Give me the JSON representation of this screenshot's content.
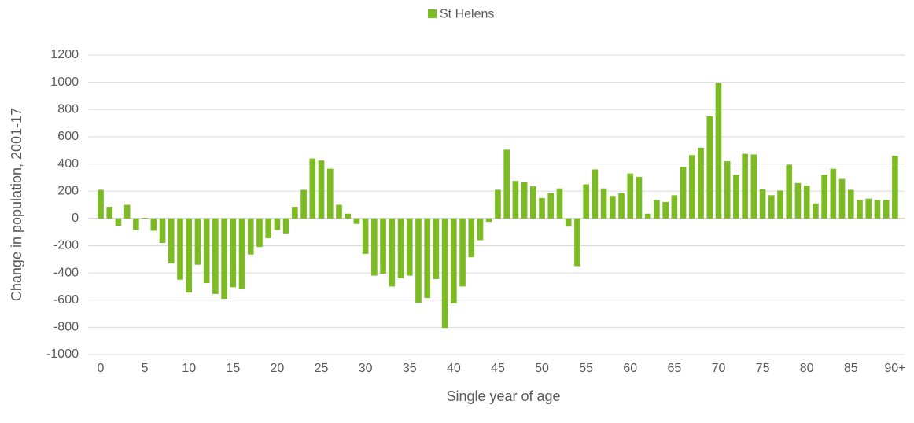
{
  "chart_data": {
    "type": "bar",
    "x_label": "Single year of age",
    "y_label": "Change in population, 2001-17",
    "categories": [
      "0",
      null,
      null,
      null,
      null,
      "5",
      null,
      null,
      null,
      null,
      "10",
      null,
      null,
      null,
      null,
      "15",
      null,
      null,
      null,
      null,
      "20",
      null,
      null,
      null,
      null,
      "25",
      null,
      null,
      null,
      null,
      "30",
      null,
      null,
      null,
      null,
      "35",
      null,
      null,
      null,
      null,
      "40",
      null,
      null,
      null,
      null,
      "45",
      null,
      null,
      null,
      null,
      "50",
      null,
      null,
      null,
      null,
      "55",
      null,
      null,
      null,
      null,
      "60",
      null,
      null,
      null,
      null,
      "65",
      null,
      null,
      null,
      null,
      "70",
      null,
      null,
      null,
      null,
      "75",
      null,
      null,
      null,
      null,
      "80",
      null,
      null,
      null,
      null,
      "85",
      null,
      null,
      null,
      null,
      "90+"
    ],
    "series": [
      {
        "name": "St Helens",
        "color": "#7cbb24",
        "values": [
          210,
          85,
          -55,
          100,
          -85,
          5,
          -90,
          -180,
          -330,
          -450,
          -545,
          -340,
          -475,
          -555,
          -590,
          -505,
          -520,
          -265,
          -210,
          -145,
          -85,
          -110,
          85,
          210,
          440,
          425,
          365,
          100,
          35,
          -40,
          -260,
          -420,
          -405,
          -500,
          -440,
          -420,
          -620,
          -585,
          -445,
          -805,
          -625,
          -500,
          -285,
          -160,
          -25,
          210,
          505,
          275,
          265,
          235,
          150,
          185,
          220,
          -60,
          -350,
          250,
          360,
          220,
          165,
          185,
          330,
          305,
          35,
          135,
          120,
          170,
          380,
          465,
          520,
          750,
          995,
          420,
          320,
          475,
          470,
          215,
          170,
          205,
          395,
          260,
          240,
          110,
          320,
          365,
          290,
          210,
          135,
          145,
          135,
          135,
          460
        ]
      }
    ],
    "ylim": [
      -1000,
      1200
    ],
    "yticks": [
      -1000,
      -800,
      -600,
      -400,
      -200,
      0,
      200,
      400,
      600,
      800,
      1000,
      1200
    ],
    "grid": true,
    "legend": "top"
  }
}
